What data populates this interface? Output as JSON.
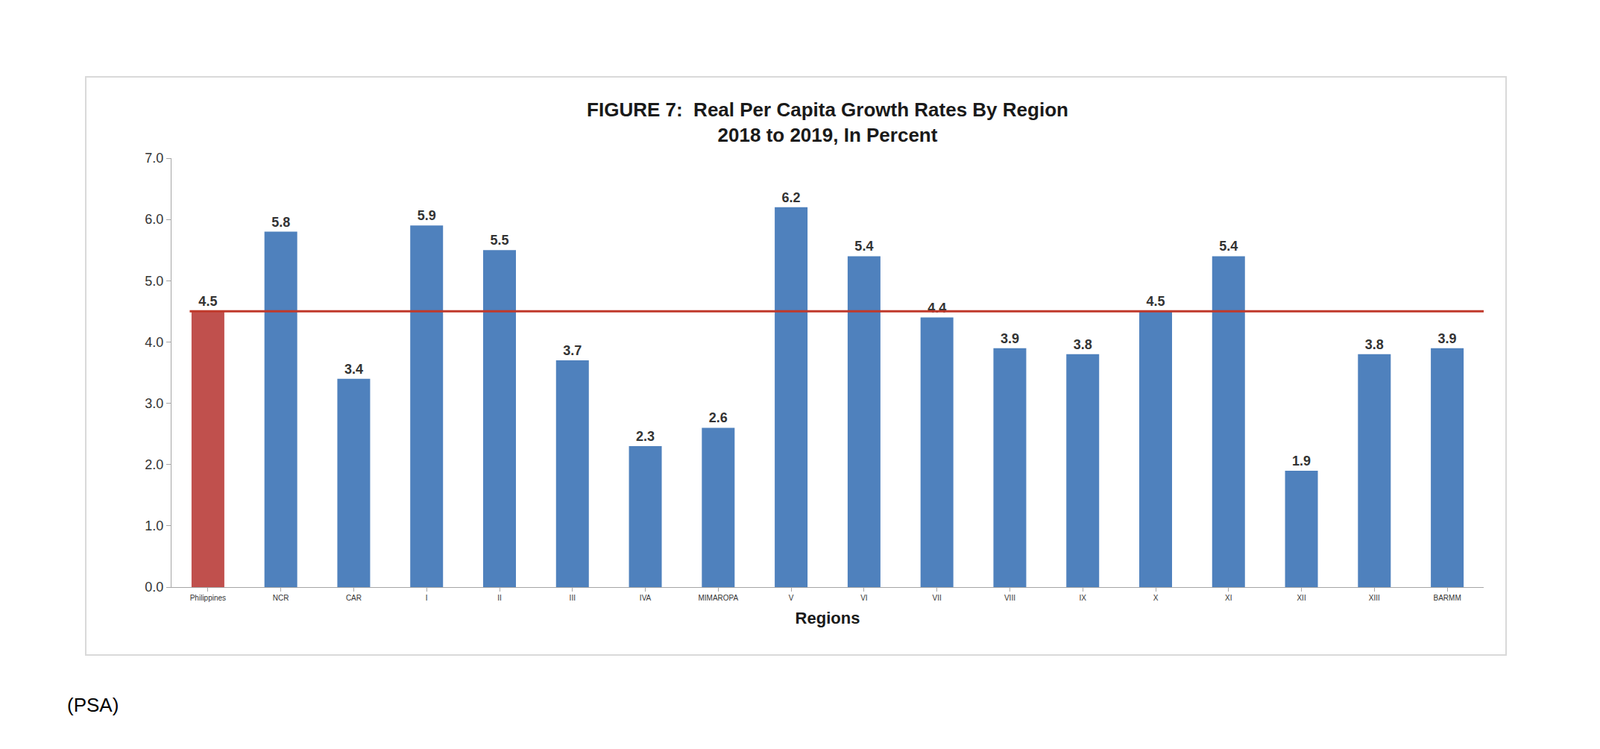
{
  "chart_data": {
    "type": "bar",
    "title": "FIGURE 7:  Real Per Capita Growth Rates By Region\n2018 to 2019, In Percent",
    "x_label": "Regions",
    "source": "(PSA)",
    "categories": [
      "Philippines",
      "NCR",
      "CAR",
      "I",
      "II",
      "III",
      "IVA",
      "MIMAROPA",
      "V",
      "VI",
      "VII",
      "VIII",
      "IX",
      "X",
      "XI",
      "XII",
      "XIII",
      "BARMM"
    ],
    "values": [
      4.5,
      5.8,
      3.4,
      5.9,
      5.5,
      3.7,
      2.3,
      2.6,
      6.2,
      5.4,
      4.4,
      3.9,
      3.8,
      4.5,
      5.4,
      1.9,
      3.8,
      3.9
    ],
    "colors": [
      "#c0504d",
      "#4f81bd",
      "#4f81bd",
      "#4f81bd",
      "#4f81bd",
      "#4f81bd",
      "#4f81bd",
      "#4f81bd",
      "#4f81bd",
      "#4f81bd",
      "#4f81bd",
      "#4f81bd",
      "#4f81bd",
      "#4f81bd",
      "#4f81bd",
      "#4f81bd",
      "#4f81bd",
      "#4f81bd"
    ],
    "reference_line": {
      "value": 4.5,
      "color": "#c0392b"
    },
    "ylim": [
      0,
      7
    ],
    "yticks": [
      {
        "value": 0,
        "label": "0.0"
      },
      {
        "value": 1,
        "label": "1.0"
      },
      {
        "value": 2,
        "label": "2.0"
      },
      {
        "value": 3,
        "label": "3.0"
      },
      {
        "value": 4,
        "label": "4.0"
      },
      {
        "value": 5,
        "label": "5.0"
      },
      {
        "value": 6,
        "label": "6.0"
      },
      {
        "value": 7,
        "label": "7.0"
      }
    ],
    "grid": false,
    "data_labels": true
  }
}
